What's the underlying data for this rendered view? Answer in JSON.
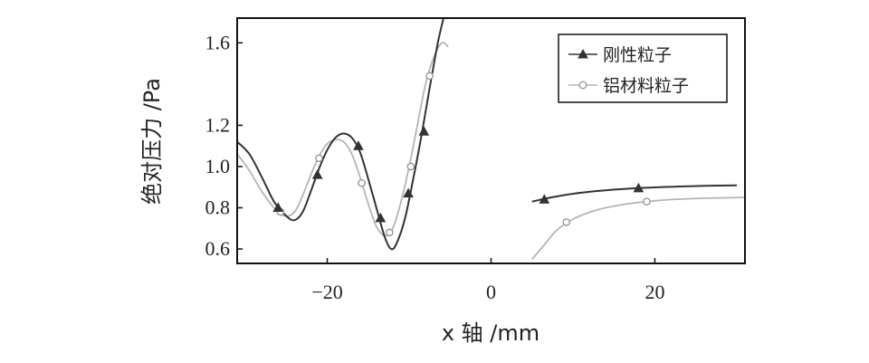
{
  "chart_data": {
    "type": "line",
    "xlabel": "x 轴 /mm",
    "ylabel": "绝对压力 /Pa",
    "xlim": [
      -31,
      31
    ],
    "ylim": [
      0.53,
      1.72
    ],
    "x_ticks": [
      -20,
      0,
      20
    ],
    "y_ticks": [
      0.6,
      0.8,
      1.0,
      1.2,
      1.6
    ],
    "x_tick_labels": [
      "−20",
      "0",
      "20"
    ],
    "y_tick_labels": [
      "0.6",
      "0.8",
      "1.0",
      "1.2",
      "1.6"
    ],
    "grid": false,
    "legend": "top-right",
    "series": [
      {
        "name": "刚性粒子",
        "color": "#333333",
        "marker": "triangle",
        "segments": [
          [
            [
              -31,
              1.12
            ],
            [
              -29.5,
              1.06
            ],
            [
              -28,
              0.95
            ],
            [
              -26.5,
              0.83
            ],
            [
              -25,
              0.76
            ],
            [
              -24,
              0.74
            ],
            [
              -23,
              0.78
            ],
            [
              -22,
              0.88
            ],
            [
              -21,
              0.99
            ],
            [
              -20,
              1.08
            ],
            [
              -19,
              1.14
            ],
            [
              -18,
              1.16
            ],
            [
              -17,
              1.14
            ],
            [
              -16,
              1.07
            ],
            [
              -15,
              0.94
            ],
            [
              -14,
              0.8
            ],
            [
              -13,
              0.66
            ],
            [
              -12.2,
              0.6
            ],
            [
              -11.5,
              0.63
            ],
            [
              -10.5,
              0.75
            ],
            [
              -9.5,
              0.94
            ],
            [
              -8.5,
              1.15
            ],
            [
              -7.5,
              1.38
            ],
            [
              -6.5,
              1.6
            ],
            [
              -5.8,
              1.72
            ]
          ],
          [
            [
              5,
              0.83
            ],
            [
              8,
              0.855
            ],
            [
              11,
              0.873
            ],
            [
              14,
              0.885
            ],
            [
              17,
              0.893
            ],
            [
              20,
              0.899
            ],
            [
              24,
              0.904
            ],
            [
              27,
              0.907
            ],
            [
              30,
              0.909
            ]
          ]
        ],
        "markers": [
          [
            -26,
            0.8
          ],
          [
            -21.2,
            0.96
          ],
          [
            -16.2,
            1.1
          ],
          [
            -13.5,
            0.75
          ],
          [
            -10.1,
            0.87
          ],
          [
            -8.2,
            1.17
          ],
          [
            6.5,
            0.84
          ],
          [
            18,
            0.895
          ]
        ]
      },
      {
        "name": "铝材料粒子",
        "color": "#b5b5b5",
        "marker": "circle",
        "segments": [
          [
            [
              -31,
              1.06
            ],
            [
              -29.5,
              0.98
            ],
            [
              -28,
              0.88
            ],
            [
              -26.5,
              0.8
            ],
            [
              -25.2,
              0.76
            ],
            [
              -24,
              0.78
            ],
            [
              -23,
              0.86
            ],
            [
              -22,
              0.96
            ],
            [
              -21,
              1.05
            ],
            [
              -20,
              1.11
            ],
            [
              -19,
              1.13
            ],
            [
              -18,
              1.12
            ],
            [
              -17,
              1.06
            ],
            [
              -16,
              0.95
            ],
            [
              -15,
              0.82
            ],
            [
              -14,
              0.71
            ],
            [
              -13,
              0.665
            ],
            [
              -12,
              0.7
            ],
            [
              -11,
              0.83
            ],
            [
              -10,
              1.0
            ],
            [
              -9,
              1.2
            ],
            [
              -8,
              1.4
            ],
            [
              -7,
              1.53
            ],
            [
              -6,
              1.6
            ],
            [
              -5.2,
              1.58
            ]
          ],
          [
            [
              5,
              0.55
            ],
            [
              6.5,
              0.62
            ],
            [
              8,
              0.69
            ],
            [
              10,
              0.745
            ],
            [
              13,
              0.79
            ],
            [
              16,
              0.815
            ],
            [
              19,
              0.83
            ],
            [
              22,
              0.84
            ],
            [
              26,
              0.846
            ],
            [
              31,
              0.85
            ]
          ]
        ],
        "markers": [
          [
            -25.7,
            0.78
          ],
          [
            -21,
            1.04
          ],
          [
            -15.8,
            0.92
          ],
          [
            -12.4,
            0.68
          ],
          [
            -9.8,
            1.0
          ],
          [
            -7.5,
            1.44
          ],
          [
            9.2,
            0.73
          ],
          [
            19,
            0.83
          ]
        ]
      }
    ]
  }
}
